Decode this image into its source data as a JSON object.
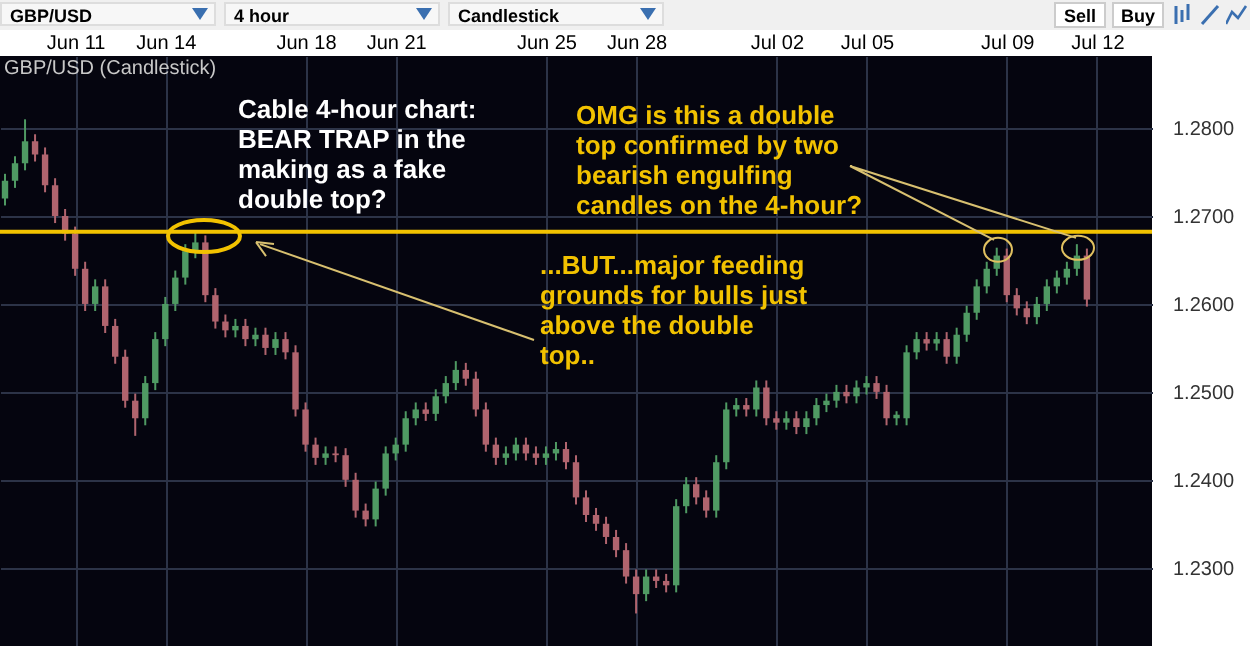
{
  "chart_data": {
    "type": "candlestick",
    "title": "GBP/USD (Candlestick)",
    "annotations": [
      "GBP/USD",
      "4 hour",
      "Candlestick",
      "Sell",
      "Buy",
      "Cable 4-hour chart: BEAR TRAP in the making as a fake double top?",
      {
        "text": "OMG is this a double top confirmed by two bearish engulfing candles on the 4-hour?",
        "y": 1.2682
      },
      {
        "text": "...BUT...major feeding grounds for bulls just above the double top..",
        "y": 1.2684
      }
    ],
    "categories": [
      null,
      null,
      null,
      null,
      null,
      null,
      null,
      "Jun 11",
      null,
      null,
      null,
      null,
      null,
      null,
      null,
      null,
      "Jun 14",
      null,
      null,
      null,
      null,
      null,
      null,
      null,
      null,
      null,
      null,
      null,
      null,
      null,
      "Jun 18",
      null,
      null,
      null,
      null,
      null,
      null,
      null,
      null,
      "Jun 21",
      null,
      null,
      null,
      null,
      null,
      null,
      null,
      null,
      null,
      null,
      null,
      null,
      null,
      null,
      "Jun 25",
      null,
      null,
      null,
      null,
      null,
      null,
      null,
      null,
      "Jun 28",
      null,
      null,
      null,
      null,
      null,
      null,
      null,
      null,
      null,
      null,
      null,
      null,
      null,
      "Jul 02",
      null,
      null,
      null,
      null,
      null,
      null,
      null,
      null,
      "Jul 05",
      null,
      null,
      null,
      null,
      null,
      null,
      null,
      null,
      null,
      null,
      null,
      null,
      null,
      "Jul 09",
      null,
      null,
      null,
      null,
      null,
      null,
      null,
      null,
      "Jul 12",
      null,
      null,
      null,
      null,
      null
    ],
    "ohlc": [
      [
        1.272,
        1.2748,
        1.2712,
        1.274
      ],
      [
        1.274,
        1.2768,
        1.2732,
        1.276
      ],
      [
        1.276,
        1.281,
        1.2752,
        1.2785
      ],
      [
        1.2785,
        1.2793,
        1.2762,
        1.277
      ],
      [
        1.277,
        1.2778,
        1.2727,
        1.2735
      ],
      [
        1.2735,
        1.2743,
        1.2692,
        1.27
      ],
      [
        1.27,
        1.2708,
        1.2672,
        1.268
      ],
      [
        1.268,
        1.2688,
        1.2632,
        1.264
      ],
      [
        1.264,
        1.2648,
        1.2592,
        1.26
      ],
      [
        1.26,
        1.2628,
        1.2592,
        1.262
      ],
      [
        1.262,
        1.2628,
        1.2567,
        1.2575
      ],
      [
        1.2575,
        1.2583,
        1.2532,
        1.254
      ],
      [
        1.254,
        1.2548,
        1.2482,
        1.249
      ],
      [
        1.249,
        1.2498,
        1.245,
        1.247
      ],
      [
        1.247,
        1.2518,
        1.2462,
        1.251
      ],
      [
        1.251,
        1.2568,
        1.2502,
        1.256
      ],
      [
        1.256,
        1.2608,
        1.2552,
        1.26
      ],
      [
        1.26,
        1.2638,
        1.2592,
        1.263
      ],
      [
        1.263,
        1.2668,
        1.2622,
        1.266
      ],
      [
        1.266,
        1.2684,
        1.2652,
        1.267
      ],
      [
        1.267,
        1.2678,
        1.2602,
        1.261
      ],
      [
        1.261,
        1.2618,
        1.2572,
        1.258
      ],
      [
        1.258,
        1.2588,
        1.2562,
        1.257
      ],
      [
        1.257,
        1.2583,
        1.2562,
        1.2575
      ],
      [
        1.2575,
        1.2583,
        1.2552,
        1.256
      ],
      [
        1.256,
        1.2573,
        1.2552,
        1.2565
      ],
      [
        1.2565,
        1.2573,
        1.2542,
        1.255
      ],
      [
        1.255,
        1.2568,
        1.2542,
        1.256
      ],
      [
        1.256,
        1.2568,
        1.2537,
        1.2545
      ],
      [
        1.2545,
        1.2553,
        1.2472,
        1.248
      ],
      [
        1.248,
        1.2488,
        1.2432,
        1.244
      ],
      [
        1.244,
        1.2448,
        1.2417,
        1.2425
      ],
      [
        1.2425,
        1.2438,
        1.2417,
        1.243
      ],
      [
        1.243,
        1.2438,
        1.242,
        1.2428
      ],
      [
        1.2428,
        1.2436,
        1.2392,
        1.24
      ],
      [
        1.24,
        1.2408,
        1.2357,
        1.2365
      ],
      [
        1.2365,
        1.2373,
        1.2347,
        1.2355
      ],
      [
        1.2355,
        1.2398,
        1.2347,
        1.239
      ],
      [
        1.239,
        1.2438,
        1.2382,
        1.243
      ],
      [
        1.243,
        1.2448,
        1.2422,
        1.244
      ],
      [
        1.244,
        1.2478,
        1.2432,
        1.247
      ],
      [
        1.247,
        1.2488,
        1.2462,
        1.248
      ],
      [
        1.248,
        1.2488,
        1.2467,
        1.2475
      ],
      [
        1.2475,
        1.2503,
        1.2467,
        1.2495
      ],
      [
        1.2495,
        1.2518,
        1.2487,
        1.251
      ],
      [
        1.251,
        1.2535,
        1.2502,
        1.2525
      ],
      [
        1.2525,
        1.2533,
        1.2507,
        1.2515
      ],
      [
        1.2515,
        1.2523,
        1.2472,
        1.248
      ],
      [
        1.248,
        1.2488,
        1.2432,
        1.244
      ],
      [
        1.244,
        1.2448,
        1.2417,
        1.2425
      ],
      [
        1.2425,
        1.2438,
        1.2417,
        1.243
      ],
      [
        1.243,
        1.2448,
        1.2422,
        1.244
      ],
      [
        1.244,
        1.2448,
        1.2422,
        1.243
      ],
      [
        1.243,
        1.2438,
        1.2417,
        1.2425
      ],
      [
        1.2425,
        1.2438,
        1.2417,
        1.243
      ],
      [
        1.243,
        1.2443,
        1.2422,
        1.2435
      ],
      [
        1.2435,
        1.2443,
        1.2412,
        1.242
      ],
      [
        1.242,
        1.2428,
        1.2372,
        1.238
      ],
      [
        1.238,
        1.2388,
        1.2352,
        1.236
      ],
      [
        1.236,
        1.2368,
        1.2342,
        1.235
      ],
      [
        1.235,
        1.2358,
        1.2327,
        1.2335
      ],
      [
        1.2335,
        1.2343,
        1.2312,
        1.232
      ],
      [
        1.232,
        1.2328,
        1.2282,
        1.229
      ],
      [
        1.229,
        1.2298,
        1.2248,
        1.227
      ],
      [
        1.227,
        1.2298,
        1.2262,
        1.229
      ],
      [
        1.229,
        1.2298,
        1.2277,
        1.2285
      ],
      [
        1.2285,
        1.2293,
        1.2272,
        1.228
      ],
      [
        1.228,
        1.2378,
        1.2272,
        1.237
      ],
      [
        1.237,
        1.2403,
        1.2362,
        1.2395
      ],
      [
        1.2395,
        1.2403,
        1.2372,
        1.238
      ],
      [
        1.238,
        1.2388,
        1.2357,
        1.2365
      ],
      [
        1.2365,
        1.2428,
        1.2357,
        1.242
      ],
      [
        1.242,
        1.2488,
        1.2412,
        1.248
      ],
      [
        1.248,
        1.2493,
        1.2472,
        1.2485
      ],
      [
        1.2485,
        1.2493,
        1.2472,
        1.248
      ],
      [
        1.248,
        1.2513,
        1.2472,
        1.2505
      ],
      [
        1.2505,
        1.2513,
        1.2462,
        1.247
      ],
      [
        1.247,
        1.2478,
        1.2457,
        1.2465
      ],
      [
        1.2465,
        1.2478,
        1.2457,
        1.247
      ],
      [
        1.247,
        1.2478,
        1.2452,
        1.246
      ],
      [
        1.246,
        1.2478,
        1.2452,
        1.247
      ],
      [
        1.247,
        1.2493,
        1.2462,
        1.2485
      ],
      [
        1.2485,
        1.2498,
        1.2477,
        1.249
      ],
      [
        1.249,
        1.2508,
        1.2482,
        1.25
      ],
      [
        1.25,
        1.2508,
        1.2487,
        1.2495
      ],
      [
        1.2495,
        1.2513,
        1.2487,
        1.2505
      ],
      [
        1.2505,
        1.2518,
        1.2497,
        1.251
      ],
      [
        1.251,
        1.2518,
        1.2492,
        1.25
      ],
      [
        1.25,
        1.2508,
        1.2462,
        1.247
      ],
      [
        1.247,
        1.2478,
        1.2462,
        1.2474
      ],
      [
        1.247,
        1.2553,
        1.2462,
        1.2545
      ],
      [
        1.2545,
        1.2568,
        1.2537,
        1.256
      ],
      [
        1.256,
        1.2568,
        1.2547,
        1.2555
      ],
      [
        1.2555,
        1.2568,
        1.2547,
        1.256
      ],
      [
        1.256,
        1.2568,
        1.2532,
        1.254
      ],
      [
        1.254,
        1.2573,
        1.2532,
        1.2565
      ],
      [
        1.2565,
        1.2598,
        1.2557,
        1.259
      ],
      [
        1.259,
        1.2628,
        1.2582,
        1.262
      ],
      [
        1.262,
        1.2648,
        1.2612,
        1.264
      ],
      [
        1.264,
        1.2664,
        1.2632,
        1.2655
      ],
      [
        1.2655,
        1.2663,
        1.2602,
        1.261
      ],
      [
        1.261,
        1.2618,
        1.2587,
        1.2595
      ],
      [
        1.2595,
        1.2603,
        1.2577,
        1.2585
      ],
      [
        1.2585,
        1.2608,
        1.2577,
        1.26
      ],
      [
        1.26,
        1.2628,
        1.2592,
        1.262
      ],
      [
        1.262,
        1.2638,
        1.2612,
        1.263
      ],
      [
        1.263,
        1.2648,
        1.2622,
        1.264
      ],
      [
        1.264,
        1.2668,
        1.2632,
        1.2655
      ],
      [
        1.2655,
        1.2663,
        1.2597,
        1.2605
      ],
      null,
      null,
      null,
      null,
      null,
      null
    ],
    "colors": [
      "#4f9a63",
      "#4f9a63",
      "#4f9a63",
      "#b0646e",
      "#b0646e",
      "#b0646e",
      "#b0646e",
      "#b0646e",
      "#b0646e",
      "#4f9a63",
      "#b0646e",
      "#b0646e",
      "#b0646e",
      "#b0646e",
      "#4f9a63",
      "#4f9a63",
      "#4f9a63",
      "#4f9a63",
      "#4f9a63",
      "#4f9a63",
      "#b0646e",
      "#b0646e",
      "#b0646e",
      "#4f9a63",
      "#b0646e",
      "#4f9a63",
      "#b0646e",
      "#4f9a63",
      "#b0646e",
      "#b0646e",
      "#b0646e",
      "#b0646e",
      "#4f9a63",
      "#b0646e",
      "#b0646e",
      "#b0646e",
      "#b0646e",
      "#4f9a63",
      "#4f9a63",
      "#4f9a63",
      "#4f9a63",
      "#4f9a63",
      "#b0646e",
      "#4f9a63",
      "#4f9a63",
      "#4f9a63",
      "#b0646e",
      "#b0646e",
      "#b0646e",
      "#b0646e",
      "#4f9a63",
      "#4f9a63",
      "#b0646e",
      "#b0646e",
      "#4f9a63",
      "#4f9a63",
      "#b0646e",
      "#b0646e",
      "#b0646e",
      "#b0646e",
      "#b0646e",
      "#b0646e",
      "#b0646e",
      "#b0646e",
      "#4f9a63",
      "#b0646e",
      "#b0646e",
      "#4f9a63",
      "#4f9a63",
      "#b0646e",
      "#b0646e",
      "#4f9a63",
      "#4f9a63",
      "#4f9a63",
      "#b0646e",
      "#4f9a63",
      "#b0646e",
      "#b0646e",
      "#4f9a63",
      "#b0646e",
      "#4f9a63",
      "#4f9a63",
      "#4f9a63",
      "#4f9a63",
      "#b0646e",
      "#4f9a63",
      "#4f9a63",
      "#b0646e",
      "#b0646e",
      "#4f9a63",
      "#4f9a63",
      "#4f9a63",
      "#b0646e",
      "#4f9a63",
      "#b0646e",
      "#4f9a63",
      "#4f9a63",
      "#4f9a63",
      "#4f9a63",
      "#4f9a63",
      "#b0646e",
      "#b0646e",
      "#b0646e",
      "#4f9a63",
      "#4f9a63",
      "#4f9a63",
      "#4f9a63",
      "#4f9a63",
      "#b0646e",
      null,
      null,
      null,
      null,
      null,
      null
    ],
    "ylim": [
      1.2211,
      1.2882
    ],
    "yticks": [
      {
        "value": 1.23,
        "label": "1.2300"
      },
      {
        "value": 1.24,
        "label": "1.2400"
      },
      {
        "value": 1.25,
        "label": "1.2500"
      },
      {
        "value": 1.26,
        "label": "1.2600"
      },
      {
        "value": 1.27,
        "label": "1.2700"
      },
      {
        "value": 1.28,
        "label": "1.2800"
      }
    ],
    "ref_lines": [
      {
        "axis": "y",
        "value": 1.2682,
        "color": "#f2c200"
      }
    ],
    "grid": true
  }
}
